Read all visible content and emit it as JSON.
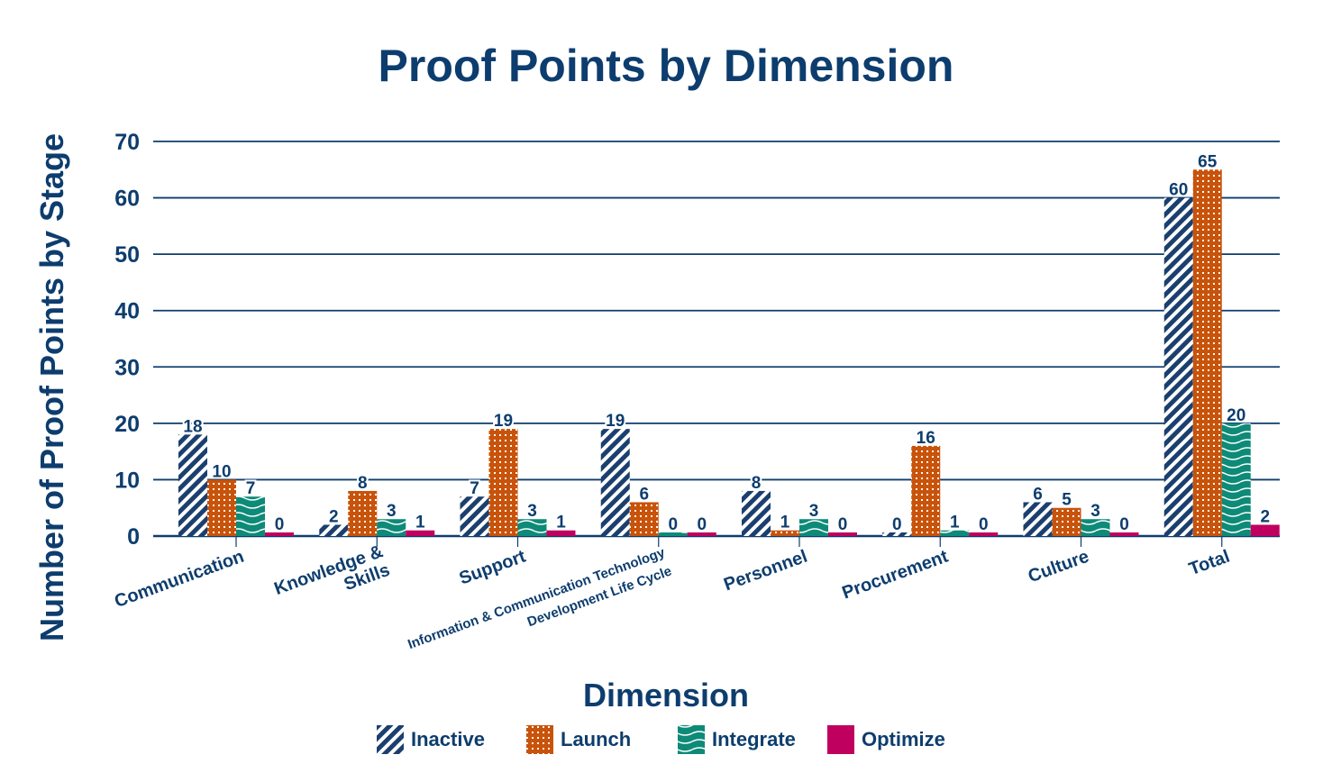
{
  "chart_data": {
    "type": "bar",
    "title": "Proof Points by Dimension",
    "xlabel": "Dimension",
    "ylabel": "Number of Proof Points by Stage",
    "ylim": [
      0,
      70
    ],
    "yticks": [
      0,
      10,
      20,
      30,
      40,
      50,
      60,
      70
    ],
    "grid": true,
    "legend_position": "bottom",
    "categories": [
      [
        "Communication"
      ],
      [
        "Knowledge &",
        "Skills"
      ],
      [
        "Support"
      ],
      [
        "Information & Communication Technology",
        "Development Life Cycle"
      ],
      [
        "Personnel"
      ],
      [
        "Procurement"
      ],
      [
        "Culture"
      ],
      [
        "Total"
      ]
    ],
    "series": [
      {
        "name": "Inactive",
        "color": "#1b3f6e",
        "pattern": "diagonal-stripes",
        "values": [
          18,
          2,
          7,
          19,
          8,
          0,
          6,
          60
        ]
      },
      {
        "name": "Launch",
        "color": "#c8530a",
        "pattern": "dots-grid",
        "values": [
          10,
          8,
          19,
          6,
          1,
          16,
          5,
          65
        ]
      },
      {
        "name": "Integrate",
        "color": "#0e8a78",
        "pattern": "waves",
        "values": [
          7,
          3,
          3,
          0,
          3,
          1,
          3,
          20
        ]
      },
      {
        "name": "Optimize",
        "color": "#c0005e",
        "pattern": "solid",
        "values": [
          0,
          1,
          1,
          0,
          0,
          0,
          0,
          2
        ]
      }
    ],
    "text_color": "#0d3d6e"
  }
}
